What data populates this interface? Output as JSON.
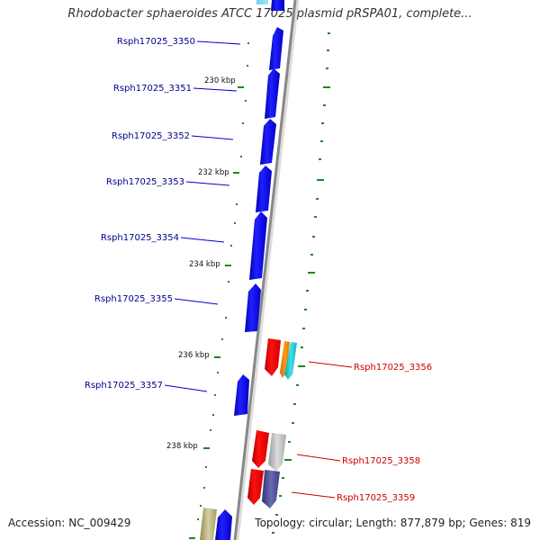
{
  "header": {
    "title": "Rhodobacter sphaeroides ATCC 17025 plasmid pRSPA01, complete..."
  },
  "footer": {
    "accession": "Accession: NC_009429",
    "summary": "Topology: circular; Length: 877,879 bp; Genes: 819"
  },
  "map": {
    "ticks": [
      "230 kbp",
      "232 kbp",
      "234 kbp",
      "236 kbp",
      "238 kbp"
    ],
    "genes_left": [
      "Rsph17025_3350",
      "Rsph17025_3351",
      "Rsph17025_3352",
      "Rsph17025_3353",
      "Rsph17025_3354",
      "Rsph17025_3355",
      "Rsph17025_3357"
    ],
    "genes_right": [
      "Rsph17025_3356",
      "Rsph17025_3358",
      "Rsph17025_3359"
    ]
  },
  "colors": {
    "forward_gene": "#0000ee",
    "reverse_gene_red": "#ee0000",
    "orange_gene": "#ff8c00",
    "cyan_gene": "#1ec8d2",
    "gray_gene": "#bbbbbb",
    "slate_gene": "#4b4b96",
    "olive_gene": "#b8b37a",
    "backbone": "#888888",
    "tick_marks": "#1a8a1a",
    "left_label": "#00008b",
    "right_label": "#cc0000"
  }
}
